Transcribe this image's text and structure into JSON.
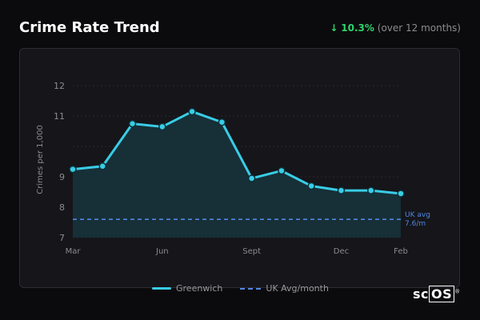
{
  "header": {
    "title": "Crime Rate Trend",
    "trend_arrow": "↓",
    "trend_value": "10.3%",
    "trend_note": "(over 12 months)"
  },
  "legend": {
    "series_label": "Greenwich",
    "reference_label": "UK Avg/month"
  },
  "logo": {
    "text_sc": "sc",
    "text_os": "OS",
    "reg": "®"
  },
  "colors": {
    "line": "#38cde6",
    "area": "#17343d",
    "reference": "#4f87e0",
    "trend_positive": "#2fd46b",
    "axis_text": "#8c8c8c"
  },
  "chart_data": {
    "type": "line",
    "ylabel": "Crimes per 1,000",
    "ylim": [
      7,
      12.4
    ],
    "yticks": [
      7,
      8,
      9,
      10,
      11,
      12
    ],
    "ytick_labels": [
      "7",
      "8",
      "9",
      "",
      "11",
      "12"
    ],
    "xticks": [
      {
        "label": "Mar",
        "index": 0
      },
      {
        "label": "Jun",
        "index": 3
      },
      {
        "label": "Sept",
        "index": 6
      },
      {
        "label": "Dec",
        "index": 9
      },
      {
        "label": "Feb",
        "index": 11
      }
    ],
    "grid": true,
    "legend_position": "bottom",
    "series": [
      {
        "name": "Greenwich",
        "values": [
          9.25,
          9.35,
          10.75,
          10.65,
          11.15,
          10.8,
          8.95,
          9.2,
          8.7,
          8.55,
          8.55,
          8.45
        ]
      }
    ],
    "reference": {
      "name": "UK Avg/month",
      "value": 7.6,
      "annotation": [
        "UK avg",
        "7.6/m"
      ]
    }
  }
}
